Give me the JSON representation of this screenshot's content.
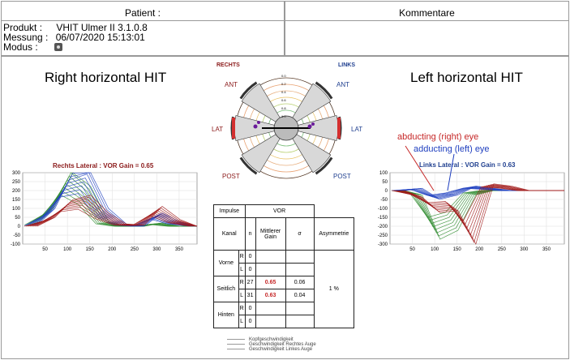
{
  "header": {
    "patient_label": "Patient :",
    "comments_label": "Kommentare"
  },
  "meta": {
    "product_label": "Produkt :",
    "product_value": "VHIT Ulmer II 3.1.0.8",
    "measure_label": "Messung :",
    "measure_value": "06/07/2020 15:13:01",
    "mode_label": "Modus :",
    "mode_icon": "camera-icon"
  },
  "titles": {
    "right": "Right horizontal HIT",
    "left": "Left horizontal HIT"
  },
  "polar": {
    "rechts": "RECHTS",
    "links": "LINKS",
    "ant": "ANT",
    "lat": "LAT",
    "post": "POST",
    "rings": [
      "0.0",
      "0.2",
      "0.4",
      "0.6",
      "0.8",
      "1.0"
    ]
  },
  "right_chart": {
    "subtitle": "Rechts Lateral : VOR Gain = 0.65"
  },
  "left_chart": {
    "subtitle": "Links Lateral : VOR Gain = 0.63",
    "annot_right": "abducting (right) eye",
    "annot_left": "adducting (left) eye"
  },
  "chart_data": [
    {
      "type": "line",
      "title": "Rechts Lateral : VOR Gain = 0.65",
      "xlim": [
        0,
        390
      ],
      "ylim": [
        -100,
        300
      ],
      "x_ticks": [
        "50",
        "100",
        "150",
        "200",
        "250",
        "300",
        "350"
      ],
      "y_ticks": [
        "300",
        "250",
        "200",
        "150",
        "100",
        "50",
        "0",
        "-50",
        "-100"
      ],
      "series": [
        {
          "color": "#2e8b2e",
          "x": [
            20,
            60,
            100,
            140,
            180,
            220,
            260,
            300,
            340,
            390
          ],
          "y": [
            10,
            90,
            260,
            180,
            20,
            0,
            0,
            15,
            0,
            0
          ]
        },
        {
          "color": "#1f3fbf",
          "x": [
            20,
            60,
            100,
            140,
            180,
            220,
            260,
            300,
            340,
            390
          ],
          "y": [
            5,
            80,
            240,
            270,
            80,
            10,
            0,
            60,
            20,
            0
          ]
        },
        {
          "color": "#a01818",
          "x": [
            20,
            60,
            100,
            140,
            180,
            220,
            260,
            300,
            340,
            390
          ],
          "y": [
            0,
            40,
            120,
            140,
            60,
            10,
            5,
            90,
            30,
            0
          ]
        }
      ]
    },
    {
      "type": "line",
      "title": "Links Lateral : VOR Gain = 0.63",
      "xlim": [
        0,
        390
      ],
      "ylim": [
        -300,
        100
      ],
      "x_ticks": [
        "50",
        "100",
        "150",
        "200",
        "250",
        "300",
        "350"
      ],
      "y_ticks": [
        "100",
        "50",
        "0",
        "-50",
        "-100",
        "-150",
        "-200",
        "-250",
        "-300"
      ],
      "series": [
        {
          "color": "#2e8b2e",
          "x": [
            20,
            60,
            100,
            140,
            180,
            220,
            260,
            300,
            340,
            390
          ],
          "y": [
            0,
            -20,
            -220,
            -180,
            -20,
            0,
            0,
            0,
            0,
            0
          ]
        },
        {
          "color": "#1f3fbf",
          "x": [
            20,
            60,
            100,
            140,
            180,
            220,
            260,
            300,
            340,
            390
          ],
          "y": [
            0,
            10,
            -40,
            -20,
            20,
            10,
            0,
            0,
            0,
            0
          ]
        },
        {
          "color": "#a01818",
          "x": [
            20,
            60,
            100,
            140,
            180,
            220,
            260,
            300,
            340,
            390
          ],
          "y": [
            0,
            -30,
            -100,
            -90,
            -250,
            30,
            20,
            0,
            0,
            0
          ]
        }
      ]
    }
  ],
  "table": {
    "impulse": "Impulse",
    "vor": "VOR",
    "kanal": "Kanal",
    "n": "n",
    "mittlerer_gain": "Mittlerer Gain",
    "sigma": "σ",
    "asym": "Asymmetrie",
    "rows": [
      {
        "group": "Vorne",
        "side": "R",
        "n": "0",
        "gain": "",
        "sd": ""
      },
      {
        "group": "",
        "side": "L",
        "n": "0",
        "gain": "",
        "sd": ""
      },
      {
        "group": "Seitlich",
        "side": "R",
        "n": "27",
        "gain": "0.65",
        "sd": "0.06"
      },
      {
        "group": "",
        "side": "L",
        "n": "31",
        "gain": "0.63",
        "sd": "0.04"
      },
      {
        "group": "Hinten",
        "side": "R",
        "n": "0",
        "gain": "",
        "sd": ""
      },
      {
        "group": "",
        "side": "L",
        "n": "0",
        "gain": "",
        "sd": ""
      }
    ],
    "asym_value": "1 %"
  },
  "legend": [
    "Kopfgeschwindigkeit",
    "Geschwindigkeit Rechtes Auge",
    "Geschwindigkeit Linkes Auge"
  ]
}
